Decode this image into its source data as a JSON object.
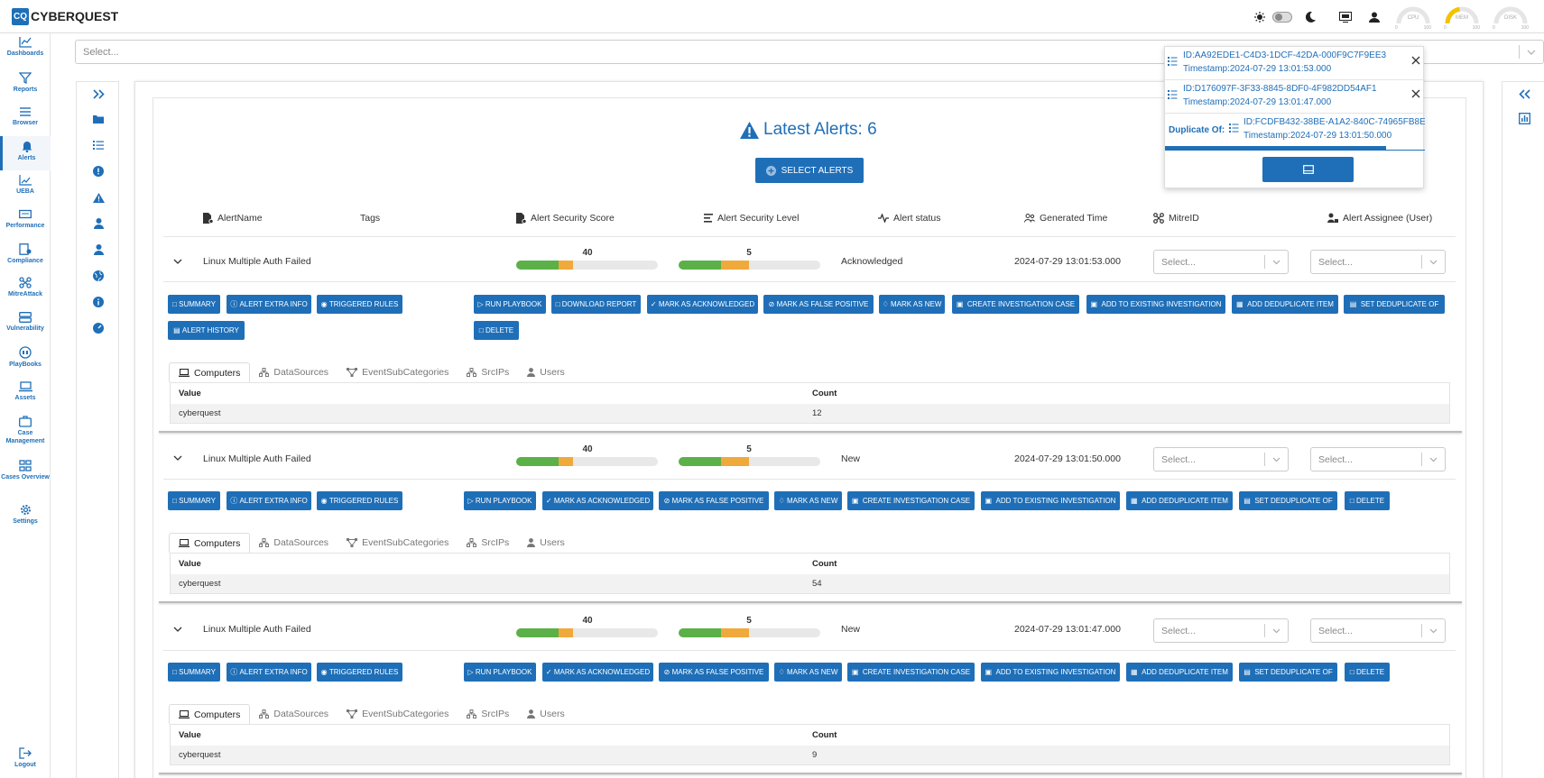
{
  "app": {
    "logo_abbr": "CQ",
    "logo_name": "CYBERQUEST"
  },
  "colors": {
    "accent": "#1f6fb8",
    "green": "#5cb048",
    "orange": "#f0a93b"
  },
  "topbar": {
    "gauges": [
      {
        "label": "CPU",
        "min": "0",
        "max": "100",
        "value": 0
      },
      {
        "label": "MEM",
        "min": "0",
        "max": "100",
        "value": 45
      },
      {
        "label": "DISK",
        "min": "0",
        "max": "100",
        "value": 0
      }
    ]
  },
  "sidebar": {
    "items": [
      {
        "label": "Dashboards",
        "icon": "dashboards-icon"
      },
      {
        "label": "Reports",
        "icon": "reports-icon"
      },
      {
        "label": "Browser",
        "icon": "browser-icon"
      },
      {
        "label": "Alerts",
        "icon": "bell-icon",
        "active": true
      },
      {
        "label": "UEBA",
        "icon": "ueba-icon"
      },
      {
        "label": "Performance",
        "icon": "performance-icon"
      },
      {
        "label": "Compliance",
        "icon": "compliance-icon"
      },
      {
        "label": "MitreAttack",
        "icon": "mitre-icon"
      },
      {
        "label": "Vulnerability",
        "icon": "vulnerability-icon"
      },
      {
        "label": "PlayBooks",
        "icon": "playbooks-icon"
      },
      {
        "label": "Assets",
        "icon": "assets-icon"
      },
      {
        "label": "Case Management",
        "icon": "case-icon"
      },
      {
        "label": "Cases Overview",
        "icon": "cases-overview-icon"
      },
      {
        "label": "Settings",
        "icon": "gear-icon"
      }
    ],
    "logout": "Logout"
  },
  "filter": {
    "placeholder": "Select..."
  },
  "main": {
    "title": "Latest Alerts: 6",
    "select_alerts": "SELECT ALERTS",
    "headers": {
      "name": "AlertName",
      "tags": "Tags",
      "score": "Alert Security Score",
      "level": "Alert Security Level",
      "status": "Alert status",
      "time": "Generated Time",
      "mitre": "MitreID",
      "assignee": "Alert Assignee (User)"
    },
    "select_placeholder": "Select...",
    "tabs": [
      "Computers",
      "DataSources",
      "EventSubCategories",
      "SrcIPs",
      "Users"
    ],
    "table_headers": [
      "Value",
      "Count"
    ],
    "alerts": [
      {
        "name": "Linux Multiple Auth Failed",
        "score": 40,
        "score_max": 100,
        "level": 5,
        "level_max": 10,
        "status": "Acknowledged",
        "time": "2024-07-29 13:01:53.000",
        "value": "cyberquest",
        "count": "12"
      },
      {
        "name": "Linux Multiple Auth Failed",
        "score": 40,
        "score_max": 100,
        "level": 5,
        "level_max": 10,
        "status": "New",
        "time": "2024-07-29 13:01:50.000",
        "value": "cyberquest",
        "count": "54"
      },
      {
        "name": "Linux Multiple Auth Failed",
        "score": 40,
        "score_max": 100,
        "level": 5,
        "level_max": 10,
        "status": "New",
        "time": "2024-07-29 13:01:47.000",
        "value": "cyberquest",
        "count": "9"
      }
    ],
    "buttons": {
      "summary": "SUMMARY",
      "extra": "ALERT EXTRA INFO",
      "triggered": "TRIGGERED RULES",
      "history": "ALERT HISTORY",
      "playbook": "RUN PLAYBOOK",
      "download": "DOWNLOAD REPORT",
      "ack": "MARK AS ACKNOWLEDGED",
      "fp": "MARK AS FALSE POSITIVE",
      "new": "MARK AS NEW",
      "create_case": "CREATE INVESTIGATION CASE",
      "add_case": "ADD TO EXISTING INVESTIGATION",
      "add_dedup": "ADD DEDUPLICATE ITEM",
      "set_dedup": "SET DEDUPLICATE OF",
      "delete": "DELETE"
    }
  },
  "popup": {
    "items": [
      {
        "id": "ID:AA92EDE1-C4D3-1DCF-42DA-000F9C7F9EE3",
        "ts": "Timestamp:2024-07-29 13:01:53.000"
      },
      {
        "id": "ID:D176097F-3F33-8845-8DF0-4F982DD54AF1",
        "ts": "Timestamp:2024-07-29 13:01:47.000"
      }
    ],
    "duplicate_label": "Duplicate Of:",
    "duplicate": {
      "id": "ID:FCDFB432-38BE-A1A2-840C-74965FB8E",
      "ts": "Timestamp:2024-07-29 13:01:50.000"
    },
    "progress": 0.85
  }
}
